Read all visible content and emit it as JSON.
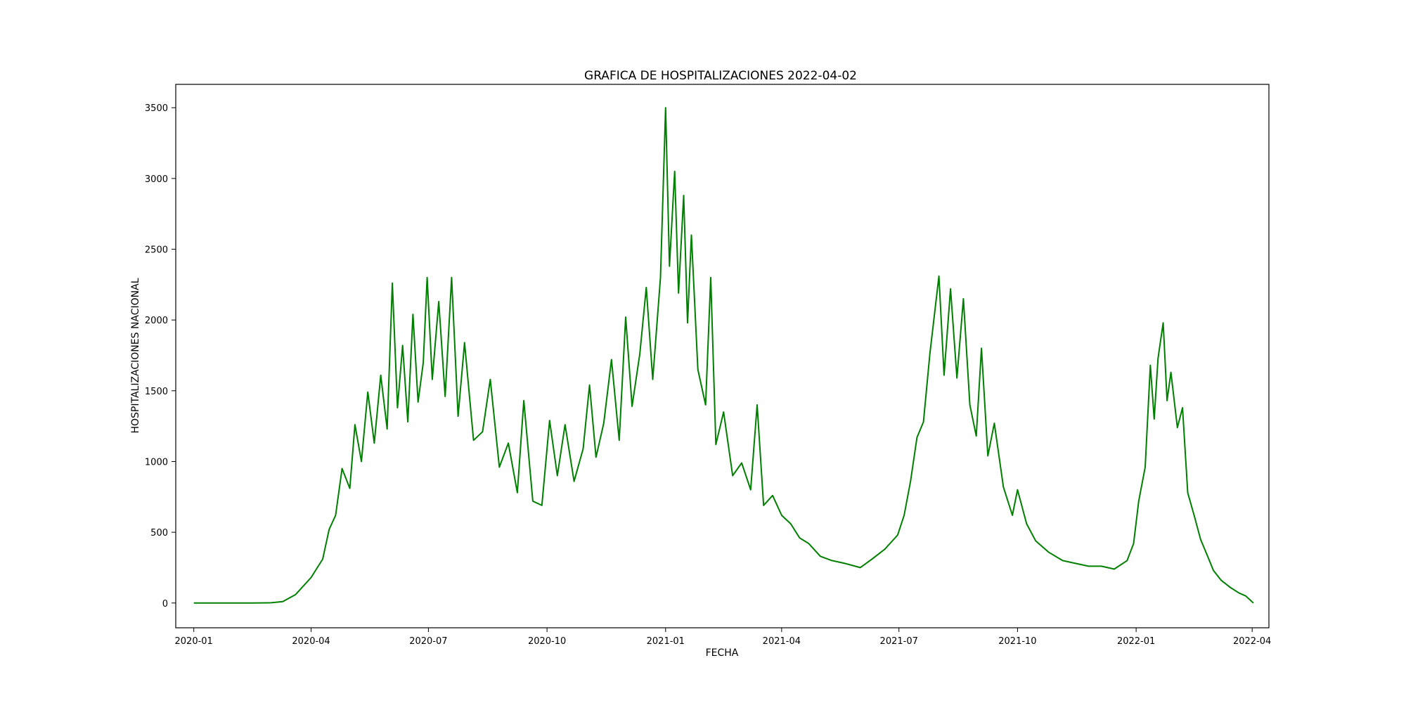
{
  "chart_data": {
    "type": "line",
    "title": "GRAFICA DE HOSPITALIZACIONES 2022-04-02",
    "xlabel": "FECHA",
    "ylabel": "HOSPITALIZACIONES NACIONAL",
    "xlim": [
      "2019-12-18",
      "2022-04-14"
    ],
    "ylim": [
      -175,
      3665
    ],
    "x_ticks": [
      "2020-01",
      "2020-04",
      "2020-07",
      "2020-10",
      "2021-01",
      "2021-04",
      "2021-07",
      "2021-10",
      "2022-01",
      "2022-04"
    ],
    "y_ticks": [
      0,
      500,
      1000,
      1500,
      2000,
      2500,
      3000,
      3500
    ],
    "grid": false,
    "legend": "none",
    "series": [
      {
        "color": "#008000",
        "points": [
          [
            "2020-01-01",
            0
          ],
          [
            "2020-02-15",
            0
          ],
          [
            "2020-03-01",
            2
          ],
          [
            "2020-03-10",
            10
          ],
          [
            "2020-03-20",
            60
          ],
          [
            "2020-04-01",
            180
          ],
          [
            "2020-04-10",
            310
          ],
          [
            "2020-04-15",
            520
          ],
          [
            "2020-04-20",
            620
          ],
          [
            "2020-04-25",
            950
          ],
          [
            "2020-05-01",
            810
          ],
          [
            "2020-05-05",
            1260
          ],
          [
            "2020-05-10",
            1000
          ],
          [
            "2020-05-15",
            1490
          ],
          [
            "2020-05-20",
            1130
          ],
          [
            "2020-05-25",
            1610
          ],
          [
            "2020-05-30",
            1230
          ],
          [
            "2020-06-03",
            2260
          ],
          [
            "2020-06-07",
            1380
          ],
          [
            "2020-06-11",
            1820
          ],
          [
            "2020-06-15",
            1280
          ],
          [
            "2020-06-19",
            2040
          ],
          [
            "2020-06-23",
            1420
          ],
          [
            "2020-06-27",
            1700
          ],
          [
            "2020-06-30",
            2300
          ],
          [
            "2020-07-04",
            1580
          ],
          [
            "2020-07-09",
            2130
          ],
          [
            "2020-07-14",
            1460
          ],
          [
            "2020-07-19",
            2300
          ],
          [
            "2020-07-24",
            1320
          ],
          [
            "2020-07-29",
            1840
          ],
          [
            "2020-08-05",
            1150
          ],
          [
            "2020-08-12",
            1210
          ],
          [
            "2020-08-18",
            1580
          ],
          [
            "2020-08-25",
            960
          ],
          [
            "2020-09-01",
            1130
          ],
          [
            "2020-09-08",
            780
          ],
          [
            "2020-09-13",
            1430
          ],
          [
            "2020-09-20",
            720
          ],
          [
            "2020-09-27",
            690
          ],
          [
            "2020-10-03",
            1290
          ],
          [
            "2020-10-09",
            900
          ],
          [
            "2020-10-15",
            1260
          ],
          [
            "2020-10-22",
            860
          ],
          [
            "2020-10-29",
            1090
          ],
          [
            "2020-11-03",
            1540
          ],
          [
            "2020-11-08",
            1030
          ],
          [
            "2020-11-14",
            1270
          ],
          [
            "2020-11-20",
            1720
          ],
          [
            "2020-11-26",
            1150
          ],
          [
            "2020-12-01",
            2020
          ],
          [
            "2020-12-06",
            1390
          ],
          [
            "2020-12-12",
            1760
          ],
          [
            "2020-12-17",
            2230
          ],
          [
            "2020-12-22",
            1580
          ],
          [
            "2020-12-28",
            2300
          ],
          [
            "2021-01-01",
            3500
          ],
          [
            "2021-01-04",
            2380
          ],
          [
            "2021-01-08",
            3050
          ],
          [
            "2021-01-11",
            2190
          ],
          [
            "2021-01-15",
            2880
          ],
          [
            "2021-01-18",
            1980
          ],
          [
            "2021-01-21",
            2600
          ],
          [
            "2021-01-26",
            1650
          ],
          [
            "2021-02-01",
            1400
          ],
          [
            "2021-02-05",
            2300
          ],
          [
            "2021-02-09",
            1120
          ],
          [
            "2021-02-15",
            1350
          ],
          [
            "2021-02-22",
            900
          ],
          [
            "2021-03-01",
            990
          ],
          [
            "2021-03-08",
            800
          ],
          [
            "2021-03-13",
            1400
          ],
          [
            "2021-03-18",
            690
          ],
          [
            "2021-03-25",
            760
          ],
          [
            "2021-04-01",
            620
          ],
          [
            "2021-04-08",
            560
          ],
          [
            "2021-04-15",
            460
          ],
          [
            "2021-04-22",
            420
          ],
          [
            "2021-05-01",
            330
          ],
          [
            "2021-05-10",
            300
          ],
          [
            "2021-05-20",
            280
          ],
          [
            "2021-06-01",
            250
          ],
          [
            "2021-06-10",
            310
          ],
          [
            "2021-06-20",
            380
          ],
          [
            "2021-06-30",
            480
          ],
          [
            "2021-07-05",
            620
          ],
          [
            "2021-07-10",
            860
          ],
          [
            "2021-07-15",
            1170
          ],
          [
            "2021-07-20",
            1280
          ],
          [
            "2021-07-25",
            1760
          ],
          [
            "2021-08-01",
            2310
          ],
          [
            "2021-08-05",
            1610
          ],
          [
            "2021-08-10",
            2220
          ],
          [
            "2021-08-15",
            1590
          ],
          [
            "2021-08-20",
            2150
          ],
          [
            "2021-08-25",
            1400
          ],
          [
            "2021-08-30",
            1180
          ],
          [
            "2021-09-03",
            1800
          ],
          [
            "2021-09-08",
            1040
          ],
          [
            "2021-09-13",
            1270
          ],
          [
            "2021-09-20",
            820
          ],
          [
            "2021-09-27",
            620
          ],
          [
            "2021-10-01",
            800
          ],
          [
            "2021-10-08",
            560
          ],
          [
            "2021-10-15",
            440
          ],
          [
            "2021-10-25",
            360
          ],
          [
            "2021-11-05",
            300
          ],
          [
            "2021-11-15",
            280
          ],
          [
            "2021-11-25",
            260
          ],
          [
            "2021-12-05",
            260
          ],
          [
            "2021-12-15",
            240
          ],
          [
            "2021-12-25",
            300
          ],
          [
            "2021-12-30",
            420
          ],
          [
            "2022-01-03",
            720
          ],
          [
            "2022-01-08",
            960
          ],
          [
            "2022-01-12",
            1680
          ],
          [
            "2022-01-15",
            1300
          ],
          [
            "2022-01-18",
            1730
          ],
          [
            "2022-01-22",
            1980
          ],
          [
            "2022-01-25",
            1430
          ],
          [
            "2022-01-28",
            1630
          ],
          [
            "2022-02-02",
            1240
          ],
          [
            "2022-02-06",
            1380
          ],
          [
            "2022-02-10",
            780
          ],
          [
            "2022-02-15",
            620
          ],
          [
            "2022-02-20",
            450
          ],
          [
            "2022-02-25",
            340
          ],
          [
            "2022-03-02",
            230
          ],
          [
            "2022-03-08",
            160
          ],
          [
            "2022-03-15",
            110
          ],
          [
            "2022-03-22",
            70
          ],
          [
            "2022-03-27",
            50
          ],
          [
            "2022-04-02",
            0
          ]
        ]
      }
    ]
  }
}
